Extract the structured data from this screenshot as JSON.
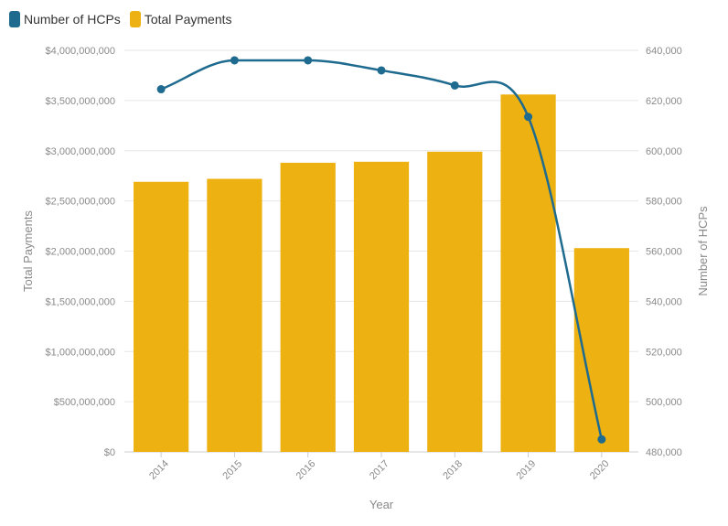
{
  "chart_data": {
    "type": "bar",
    "categories": [
      "2014",
      "2015",
      "2016",
      "2017",
      "2018",
      "2019",
      "2020"
    ],
    "series": [
      {
        "name": "Total Payments",
        "type": "bar",
        "axis": "left",
        "color": "#EDB111",
        "values": [
          2690000000,
          2720000000,
          2880000000,
          2890000000,
          2990000000,
          3560000000,
          2030000000
        ]
      },
      {
        "name": "Number of HCPs",
        "type": "line",
        "axis": "right",
        "color": "#1F6B8F",
        "values": [
          624500,
          636000,
          636000,
          632000,
          626000,
          613500,
          485000
        ]
      }
    ],
    "xlabel": "Year",
    "ylabel_left": "Total Payments",
    "ylabel_right": "Number of HCPs",
    "ylim_left": [
      0,
      4000000000
    ],
    "ylim_right": [
      480000,
      640000
    ],
    "yticks_left": [
      "$0",
      "$500,000,000",
      "$1,000,000,000",
      "$1,500,000,000",
      "$2,000,000,000",
      "$2,500,000,000",
      "$3,000,000,000",
      "$3,500,000,000",
      "$4,000,000,000"
    ],
    "yticks_right": [
      "480,000",
      "500,000",
      "520,000",
      "540,000",
      "560,000",
      "580,000",
      "600,000",
      "620,000",
      "640,000"
    ],
    "legend": [
      "Number of HCPs",
      "Total Payments"
    ],
    "legend_position": "top-left",
    "grid": true
  }
}
